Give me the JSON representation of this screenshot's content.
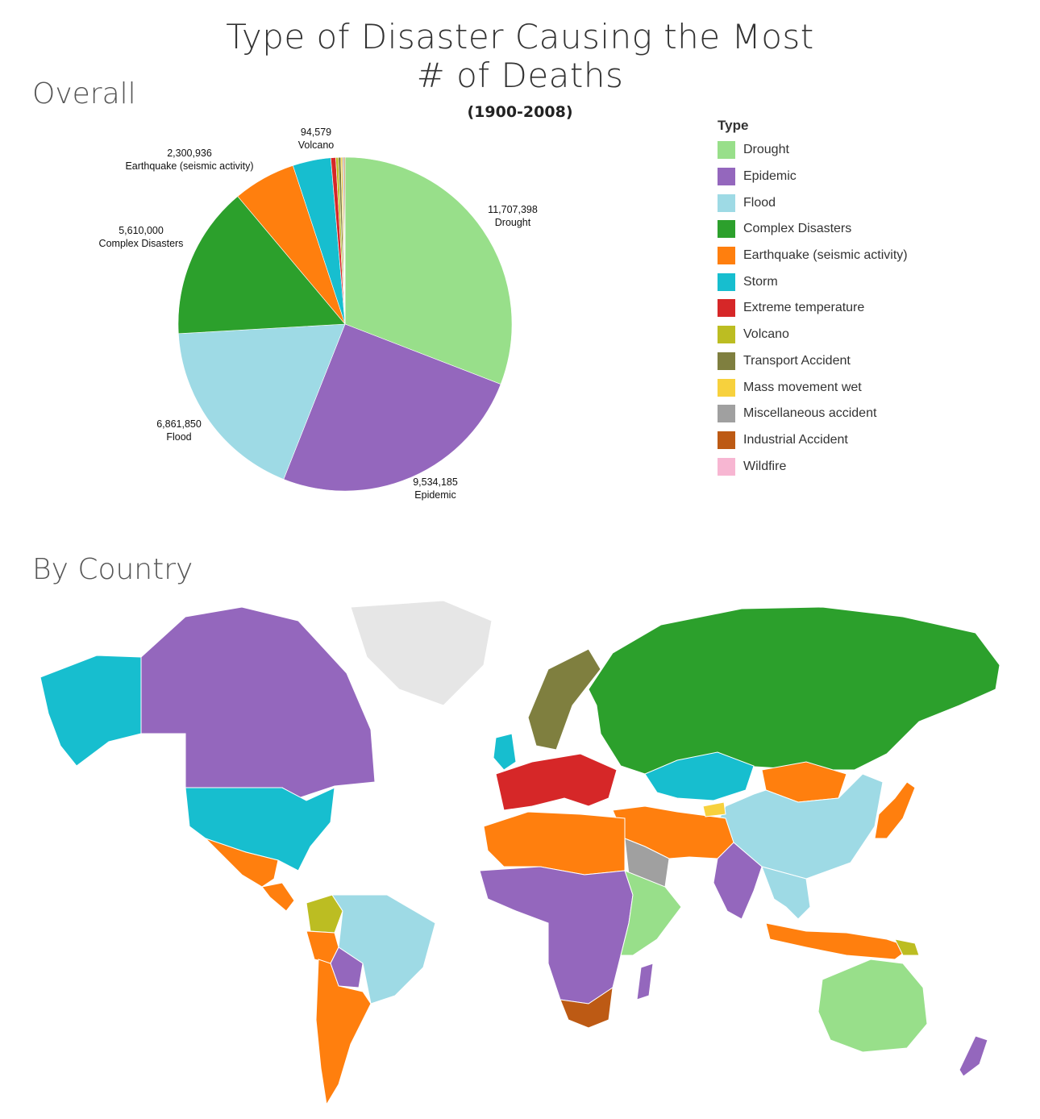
{
  "header": {
    "title_line1": "Type of Disaster Causing the Most",
    "title_line2": "# of Deaths",
    "subtitle": "(1900-2008)"
  },
  "sections": {
    "overall": "Overall",
    "by_country": "By Country"
  },
  "chart_data": [
    {
      "type": "pie",
      "title": "Type of Disaster Causing the Most # of Deaths",
      "subtitle": "(1900-2008)",
      "section": "Overall",
      "slices": [
        {
          "label": "Drought",
          "value": 11707398,
          "value_text": "11,707,398",
          "color": "#98df8a",
          "labeled": true
        },
        {
          "label": "Epidemic",
          "value": 9534185,
          "value_text": "9,534,185",
          "color": "#9467bd",
          "labeled": true
        },
        {
          "label": "Flood",
          "value": 6861850,
          "value_text": "6,861,850",
          "color": "#9edae5",
          "labeled": true
        },
        {
          "label": "Complex Disasters",
          "value": 5610000,
          "value_text": "5,610,000",
          "color": "#2ca02c",
          "labeled": true
        },
        {
          "label": "Earthquake (seismic activity)",
          "value": 2300936,
          "value_text": "2,300,936",
          "color": "#ff7f0e",
          "labeled": true
        },
        {
          "label": "Storm",
          "value": 1400000,
          "value_text": "",
          "color": "#17becf",
          "labeled": false
        },
        {
          "label": "Extreme temperature",
          "value": 180000,
          "value_text": "",
          "color": "#d62728",
          "labeled": false
        },
        {
          "label": "Volcano",
          "value": 94579,
          "value_text": "94,579",
          "color": "#bcbd22",
          "labeled": true
        },
        {
          "label": "Transport Accident",
          "value": 90000,
          "value_text": "",
          "color": "#7f7f3f",
          "labeled": false
        },
        {
          "label": "Mass movement wet",
          "value": 60000,
          "value_text": "",
          "color": "#f7d13d",
          "labeled": false
        },
        {
          "label": "Miscellaneous accident",
          "value": 50000,
          "value_text": "",
          "color": "#a0a0a0",
          "labeled": false
        },
        {
          "label": "Industrial Accident",
          "value": 40000,
          "value_text": "",
          "color": "#bd5a14",
          "labeled": false
        },
        {
          "label": "Wildfire",
          "value": 3000,
          "value_text": "",
          "color": "#f7b6d2",
          "labeled": false
        }
      ],
      "legend_title": "Type",
      "legend_position": "right"
    },
    {
      "type": "choropleth",
      "section": "By Country",
      "regions": [
        {
          "region": "Canada",
          "type": "Epidemic"
        },
        {
          "region": "Alaska",
          "type": "Storm"
        },
        {
          "region": "United States",
          "type": "Storm"
        },
        {
          "region": "Mexico",
          "type": "Earthquake (seismic activity)"
        },
        {
          "region": "Central America",
          "type": "Earthquake (seismic activity)"
        },
        {
          "region": "Colombia",
          "type": "Volcano"
        },
        {
          "region": "Brazil",
          "type": "Flood"
        },
        {
          "region": "Peru",
          "type": "Earthquake (seismic activity)"
        },
        {
          "region": "Bolivia",
          "type": "Epidemic"
        },
        {
          "region": "Argentina and Chile",
          "type": "Earthquake (seismic activity)"
        },
        {
          "region": "Greenland",
          "type": "none"
        },
        {
          "region": "United Kingdom",
          "type": "Storm"
        },
        {
          "region": "Scandinavia",
          "type": "Transport Accident"
        },
        {
          "region": "Western Europe",
          "type": "Extreme temperature"
        },
        {
          "region": "Russia",
          "type": "Complex Disasters"
        },
        {
          "region": "Kazakhstan",
          "type": "Storm"
        },
        {
          "region": "Mongolia",
          "type": "Earthquake (seismic activity)"
        },
        {
          "region": "China",
          "type": "Flood"
        },
        {
          "region": "Japan",
          "type": "Earthquake (seismic activity)"
        },
        {
          "region": "Middle East",
          "type": "Earthquake (seismic activity)"
        },
        {
          "region": "Saudi Arabia",
          "type": "Miscellaneous accident"
        },
        {
          "region": "India",
          "type": "Epidemic"
        },
        {
          "region": "Southeast Asia",
          "type": "Flood"
        },
        {
          "region": "Indonesia",
          "type": "Earthquake (seismic activity)"
        },
        {
          "region": "North Africa",
          "type": "Earthquake (seismic activity)"
        },
        {
          "region": "Sahel and Central Africa",
          "type": "Epidemic"
        },
        {
          "region": "East Africa",
          "type": "Drought"
        },
        {
          "region": "South Africa",
          "type": "Industrial Accident"
        },
        {
          "region": "Madagascar",
          "type": "Epidemic"
        },
        {
          "region": "Australia",
          "type": "Drought"
        },
        {
          "region": "New Zealand",
          "type": "Epidemic"
        },
        {
          "region": "Papua New Guinea",
          "type": "Volcano"
        },
        {
          "region": "Kyrgyzstan",
          "type": "Mass movement wet"
        }
      ]
    }
  ]
}
